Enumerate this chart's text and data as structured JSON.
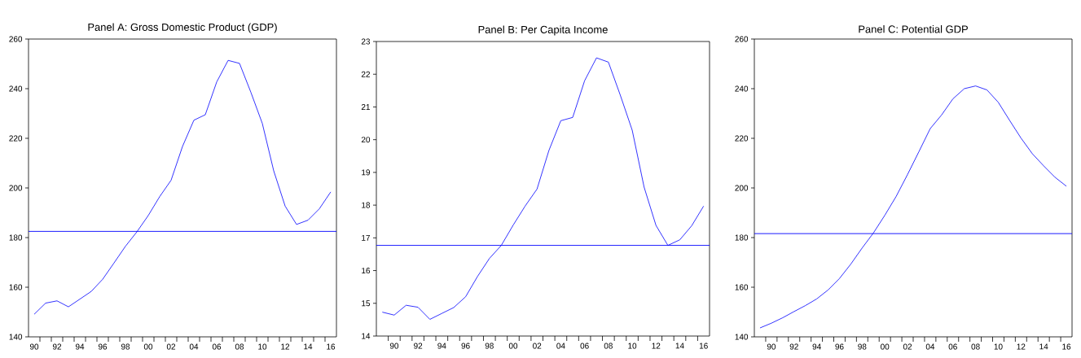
{
  "chart_data": [
    {
      "type": "line",
      "title": "Panel A: Gross Domestic Product (GDP)",
      "grid": false,
      "marker": "none",
      "line_style": "solid",
      "x": [
        1990,
        1991,
        1992,
        1993,
        1994,
        1995,
        1996,
        1997,
        1998,
        1999,
        2000,
        2001,
        2002,
        2003,
        2004,
        2005,
        2006,
        2007,
        2008,
        2009,
        2010,
        2011,
        2012,
        2013,
        2014,
        2015,
        2016
      ],
      "series": [
        {
          "color": "#0000ff",
          "values": [
            149.1,
            153.6,
            154.5,
            152.1,
            155.2,
            158.3,
            163.2,
            169.8,
            176.5,
            182.3,
            188.9,
            196.5,
            203.1,
            216.7,
            227.3,
            229.5,
            242.7,
            251.4,
            250.2,
            238.5,
            226.0,
            206.9,
            192.7,
            185.3,
            187.0,
            191.6,
            198.4
          ]
        }
      ],
      "ref_lines": [
        {
          "axis": "y",
          "value": 182.5,
          "color": "#0000ff"
        }
      ],
      "xlim": [
        1989.5,
        2016.5
      ],
      "ylim": [
        140,
        260
      ],
      "yticks": [
        140,
        160,
        180,
        200,
        220,
        240,
        260
      ],
      "xticks": [
        {
          "value": 1990,
          "label": "90"
        },
        {
          "value": 1992,
          "label": "92"
        },
        {
          "value": 1994,
          "label": "94"
        },
        {
          "value": 1996,
          "label": "96"
        },
        {
          "value": 1998,
          "label": "98"
        },
        {
          "value": 2000,
          "label": "00"
        },
        {
          "value": 2002,
          "label": "02"
        },
        {
          "value": 2004,
          "label": "04"
        },
        {
          "value": 2006,
          "label": "06"
        },
        {
          "value": 2008,
          "label": "08"
        },
        {
          "value": 2010,
          "label": "10"
        },
        {
          "value": 2012,
          "label": "12"
        },
        {
          "value": 2014,
          "label": "14"
        },
        {
          "value": 2016,
          "label": "16"
        },
        {
          "value": 1990.5,
          "label": null
        },
        {
          "value": 1991.5,
          "label": null
        },
        {
          "value": 1992.5,
          "label": null
        },
        {
          "value": 1993.5,
          "label": null
        },
        {
          "value": 1994.5,
          "label": null
        },
        {
          "value": 1995.5,
          "label": null
        },
        {
          "value": 1996.5,
          "label": null
        },
        {
          "value": 1997.5,
          "label": null
        },
        {
          "value": 1998.5,
          "label": null
        },
        {
          "value": 1999.5,
          "label": null
        },
        {
          "value": 2000.5,
          "label": null
        },
        {
          "value": 2001.5,
          "label": null
        },
        {
          "value": 2002.5,
          "label": null
        },
        {
          "value": 2003.5,
          "label": null
        },
        {
          "value": 2004.5,
          "label": null
        },
        {
          "value": 2005.5,
          "label": null
        },
        {
          "value": 2006.5,
          "label": null
        },
        {
          "value": 2007.5,
          "label": null
        },
        {
          "value": 2008.5,
          "label": null
        },
        {
          "value": 2009.5,
          "label": null
        },
        {
          "value": 2010.5,
          "label": null
        },
        {
          "value": 2011.5,
          "label": null
        },
        {
          "value": 2012.5,
          "label": null
        },
        {
          "value": 2013.5,
          "label": null
        },
        {
          "value": 2014.5,
          "label": null
        },
        {
          "value": 2015.5,
          "label": null
        }
      ]
    },
    {
      "type": "line",
      "title": "Panel B: Per Capita Income",
      "grid": false,
      "marker": "none",
      "line_style": "solid",
      "x": [
        1989,
        1990,
        1991,
        1992,
        1993,
        1994,
        1995,
        1996,
        1997,
        1998,
        1999,
        2000,
        2001,
        2002,
        2003,
        2004,
        2005,
        2006,
        2007,
        2008,
        2009,
        2010,
        2011,
        2012,
        2013,
        2014,
        2015,
        2016
      ],
      "series": [
        {
          "color": "#0000ff",
          "values": [
            14.73,
            14.64,
            14.94,
            14.88,
            14.51,
            14.69,
            14.87,
            15.2,
            15.82,
            16.37,
            16.77,
            17.39,
            17.97,
            18.49,
            19.67,
            20.58,
            20.68,
            21.8,
            22.5,
            22.37,
            21.36,
            20.29,
            18.55,
            17.38,
            16.77,
            16.94,
            17.37,
            17.97
          ]
        }
      ],
      "ref_lines": [
        {
          "axis": "y",
          "value": 16.77,
          "color": "#0000ff"
        }
      ],
      "xlim": [
        1988.5,
        2016.5
      ],
      "ylim": [
        14,
        23
      ],
      "yticks": [
        14,
        15,
        16,
        17,
        18,
        19,
        20,
        21,
        22,
        23
      ],
      "xticks": [
        {
          "value": 1990,
          "label": "90"
        },
        {
          "value": 1992,
          "label": "92"
        },
        {
          "value": 1994,
          "label": "94"
        },
        {
          "value": 1996,
          "label": "96"
        },
        {
          "value": 1998,
          "label": "98"
        },
        {
          "value": 2000,
          "label": "00"
        },
        {
          "value": 2002,
          "label": "02"
        },
        {
          "value": 2004,
          "label": "04"
        },
        {
          "value": 2006,
          "label": "06"
        },
        {
          "value": 2008,
          "label": "08"
        },
        {
          "value": 2010,
          "label": "10"
        },
        {
          "value": 2012,
          "label": "12"
        },
        {
          "value": 2014,
          "label": "14"
        },
        {
          "value": 2016,
          "label": "16"
        },
        {
          "value": 1989.5,
          "label": null
        },
        {
          "value": 1990.5,
          "label": null
        },
        {
          "value": 1991.5,
          "label": null
        },
        {
          "value": 1992.5,
          "label": null
        },
        {
          "value": 1993.5,
          "label": null
        },
        {
          "value": 1994.5,
          "label": null
        },
        {
          "value": 1995.5,
          "label": null
        },
        {
          "value": 1996.5,
          "label": null
        },
        {
          "value": 1997.5,
          "label": null
        },
        {
          "value": 1998.5,
          "label": null
        },
        {
          "value": 1999.5,
          "label": null
        },
        {
          "value": 2000.5,
          "label": null
        },
        {
          "value": 2001.5,
          "label": null
        },
        {
          "value": 2002.5,
          "label": null
        },
        {
          "value": 2003.5,
          "label": null
        },
        {
          "value": 2004.5,
          "label": null
        },
        {
          "value": 2005.5,
          "label": null
        },
        {
          "value": 2006.5,
          "label": null
        },
        {
          "value": 2007.5,
          "label": null
        },
        {
          "value": 2008.5,
          "label": null
        },
        {
          "value": 2009.5,
          "label": null
        },
        {
          "value": 2010.5,
          "label": null
        },
        {
          "value": 2011.5,
          "label": null
        },
        {
          "value": 2012.5,
          "label": null
        },
        {
          "value": 2013.5,
          "label": null
        },
        {
          "value": 2014.5,
          "label": null
        },
        {
          "value": 2015.5,
          "label": null
        }
      ]
    },
    {
      "type": "line",
      "title": "Panel C: Potential GDP",
      "grid": false,
      "marker": "none",
      "line_style": "solid",
      "x": [
        1989,
        1990,
        1991,
        1992,
        1993,
        1994,
        1995,
        1996,
        1997,
        1998,
        1999,
        2000,
        2001,
        2002,
        2003,
        2004,
        2005,
        2006,
        2007,
        2008,
        2009,
        2010,
        2011,
        2012,
        2013,
        2014,
        2015,
        2016
      ],
      "series": [
        {
          "color": "#0000ff",
          "values": [
            143.6,
            145.5,
            147.7,
            150.2,
            152.6,
            155.3,
            158.9,
            163.5,
            169.3,
            175.8,
            181.9,
            189.0,
            196.6,
            205.4,
            214.6,
            223.9,
            229.4,
            235.9,
            240.0,
            241.1,
            239.5,
            234.5,
            227.2,
            220.1,
            213.8,
            208.9,
            204.3,
            200.7
          ]
        }
      ],
      "ref_lines": [
        {
          "axis": "y",
          "value": 181.6,
          "color": "#0000ff"
        }
      ],
      "xlim": [
        1988.5,
        2016.5
      ],
      "ylim": [
        140,
        260
      ],
      "yticks": [
        140,
        160,
        180,
        200,
        220,
        240,
        260
      ],
      "xticks": [
        {
          "value": 1990,
          "label": "90"
        },
        {
          "value": 1992,
          "label": "92"
        },
        {
          "value": 1994,
          "label": "94"
        },
        {
          "value": 1996,
          "label": "96"
        },
        {
          "value": 1998,
          "label": "98"
        },
        {
          "value": 2000,
          "label": "00"
        },
        {
          "value": 2002,
          "label": "02"
        },
        {
          "value": 2004,
          "label": "04"
        },
        {
          "value": 2006,
          "label": "06"
        },
        {
          "value": 2008,
          "label": "08"
        },
        {
          "value": 2010,
          "label": "10"
        },
        {
          "value": 2012,
          "label": "12"
        },
        {
          "value": 2014,
          "label": "14"
        },
        {
          "value": 2016,
          "label": "16"
        },
        {
          "value": 1989.5,
          "label": null
        },
        {
          "value": 1990.5,
          "label": null
        },
        {
          "value": 1991.5,
          "label": null
        },
        {
          "value": 1992.5,
          "label": null
        },
        {
          "value": 1993.5,
          "label": null
        },
        {
          "value": 1994.5,
          "label": null
        },
        {
          "value": 1995.5,
          "label": null
        },
        {
          "value": 1996.5,
          "label": null
        },
        {
          "value": 1997.5,
          "label": null
        },
        {
          "value": 1998.5,
          "label": null
        },
        {
          "value": 1999.5,
          "label": null
        },
        {
          "value": 2000.5,
          "label": null
        },
        {
          "value": 2001.5,
          "label": null
        },
        {
          "value": 2002.5,
          "label": null
        },
        {
          "value": 2003.5,
          "label": null
        },
        {
          "value": 2004.5,
          "label": null
        },
        {
          "value": 2005.5,
          "label": null
        },
        {
          "value": 2006.5,
          "label": null
        },
        {
          "value": 2007.5,
          "label": null
        },
        {
          "value": 2008.5,
          "label": null
        },
        {
          "value": 2009.5,
          "label": null
        },
        {
          "value": 2010.5,
          "label": null
        },
        {
          "value": 2011.5,
          "label": null
        },
        {
          "value": 2012.5,
          "label": null
        },
        {
          "value": 2013.5,
          "label": null
        },
        {
          "value": 2014.5,
          "label": null
        },
        {
          "value": 2015.5,
          "label": null
        }
      ]
    }
  ]
}
